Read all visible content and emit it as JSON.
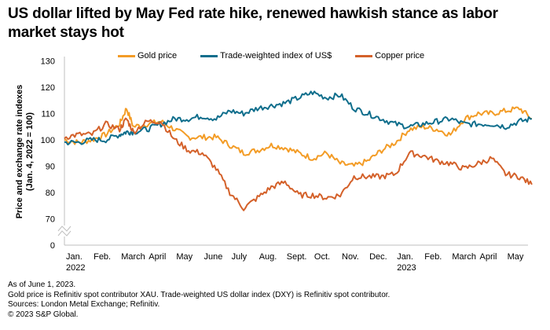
{
  "title": "US dollar lifted by May Fed rate hike, renewed hawkish stance as labor market stays hot",
  "footer": [
    "As of June 1, 2023.",
    "Gold price is Refinitiv spot contributor XAU. Trade-weighted US dollar index (DXY) is Refinitiv spot contributor.",
    "Sources: London Metal Exchange; Refinitiv.",
    "© 2023 S&P Global."
  ],
  "chart_data": {
    "type": "line",
    "title": "US dollar lifted by May Fed rate hike, renewed hawkish stance as labor market stays hot",
    "xlabel": "",
    "ylabel": "Price and exchange rate indexes (Jan. 4, 2022 = 100)",
    "ylim": [
      0,
      130
    ],
    "axis_break": [
      0,
      70
    ],
    "yticks": [
      "0",
      "70",
      "80",
      "90",
      "100",
      "110",
      "120",
      "130"
    ],
    "xticks": [
      {
        "label": "Jan.",
        "sub": "2022"
      },
      {
        "label": "Feb.",
        "sub": ""
      },
      {
        "label": "March",
        "sub": ""
      },
      {
        "label": "April",
        "sub": ""
      },
      {
        "label": "May",
        "sub": ""
      },
      {
        "label": "June",
        "sub": ""
      },
      {
        "label": "July",
        "sub": ""
      },
      {
        "label": "Aug.",
        "sub": ""
      },
      {
        "label": "Sept.",
        "sub": ""
      },
      {
        "label": "Oct.",
        "sub": ""
      },
      {
        "label": "Nov.",
        "sub": ""
      },
      {
        "label": "Dec.",
        "sub": ""
      },
      {
        "label": "Jan.",
        "sub": "2023"
      },
      {
        "label": "Feb.",
        "sub": ""
      },
      {
        "label": "March",
        "sub": ""
      },
      {
        "label": "April",
        "sub": ""
      },
      {
        "label": "May",
        "sub": ""
      }
    ],
    "grid": false,
    "legend_position": "top",
    "x_months": [
      0,
      0.5,
      1,
      1.5,
      2,
      2.25,
      2.5,
      3,
      3.5,
      4,
      4.5,
      5,
      5.5,
      6,
      6.5,
      7,
      7.5,
      8,
      8.5,
      9,
      9.5,
      10,
      10.5,
      11,
      11.5,
      12,
      12.5,
      13,
      13.5,
      14,
      14.5,
      15,
      15.5,
      16,
      16.5,
      16.95
    ],
    "series": [
      {
        "name": "Gold price",
        "color": "#f39c26",
        "values": [
          100,
          99,
          100,
          102,
          106,
          112,
          105,
          106,
          107,
          104,
          101,
          101,
          101,
          98,
          95,
          96,
          98,
          97,
          95,
          93,
          95,
          91,
          90,
          92,
          96,
          99,
          104,
          105,
          104,
          102,
          108,
          110,
          110,
          111,
          112,
          108
        ]
      },
      {
        "name": "Trade-weighted index of US$",
        "color": "#0f6e8c",
        "values": [
          99,
          99,
          100,
          100,
          102,
          103,
          103,
          104,
          106,
          108,
          108,
          109,
          108,
          111,
          110,
          112,
          113,
          114,
          116,
          118,
          116,
          117,
          112,
          110,
          108,
          106,
          105,
          106,
          107,
          108,
          106,
          106,
          106,
          105,
          107,
          108
        ]
      },
      {
        "name": "Copper price",
        "color": "#d4612a",
        "values": [
          101,
          102,
          102,
          106,
          104,
          108,
          103,
          107,
          107,
          100,
          96,
          95,
          89,
          80,
          74,
          78,
          82,
          84,
          79,
          79,
          78,
          79,
          86,
          86,
          86,
          87,
          95,
          94,
          92,
          91,
          89,
          91,
          93,
          87,
          86,
          83
        ]
      }
    ]
  }
}
